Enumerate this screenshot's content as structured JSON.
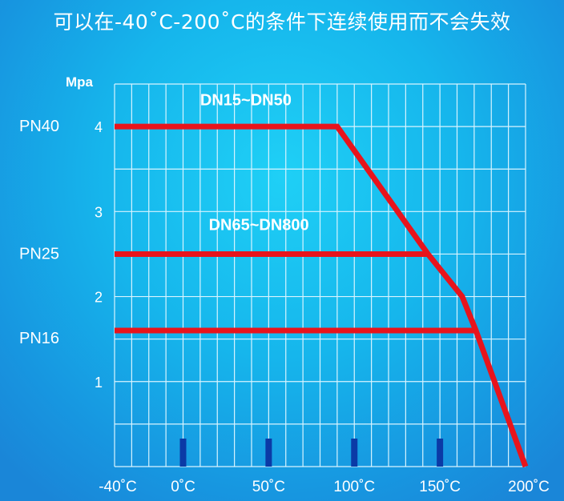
{
  "title": "可以在-40˚C-200˚C的条件下连续使用而不会失效",
  "chart_data": {
    "type": "line",
    "title": "可以在-40˚C-200˚C的条件下连续使用而不会失效",
    "ylabel": "Mpa",
    "xlim": [
      -40,
      200
    ],
    "ylim": [
      0,
      4.5
    ],
    "grid": true,
    "x_grid_step": 10,
    "y_grid_step": 0.5,
    "x_ticks": [
      -40,
      0,
      50,
      100,
      150,
      200
    ],
    "x_tick_labels": [
      "-40˚C",
      "0˚C",
      "50˚C",
      "100˚C",
      "150˚C",
      "200˚C"
    ],
    "y_ticks": [
      1,
      2,
      3,
      4
    ],
    "y_tick_labels": [
      "1",
      "2",
      "3",
      "4"
    ],
    "pressure_class_labels": [
      {
        "label": "PN40",
        "value": 4.0
      },
      {
        "label": "PN25",
        "value": 2.5
      },
      {
        "label": "PN16",
        "value": 1.6
      }
    ],
    "series": [
      {
        "name": "DN15~DN50",
        "points": [
          [
            -40,
            4.0
          ],
          [
            90,
            4.0
          ],
          [
            143,
            2.5
          ],
          [
            163,
            2.0
          ],
          [
            171,
            1.6
          ],
          [
            200,
            0
          ]
        ]
      },
      {
        "name": "DN65~DN800",
        "points": [
          [
            -40,
            2.5
          ],
          [
            143,
            2.5
          ]
        ]
      },
      {
        "name": "",
        "points": [
          [
            -40,
            1.6
          ],
          [
            171,
            1.6
          ]
        ]
      }
    ],
    "marker_ticks": [
      0,
      50,
      100,
      150
    ],
    "colors": {
      "line": "#e8141c",
      "grid": "#d8f4ff",
      "marker": "#0b3aa6",
      "text": "#ffffff"
    }
  }
}
